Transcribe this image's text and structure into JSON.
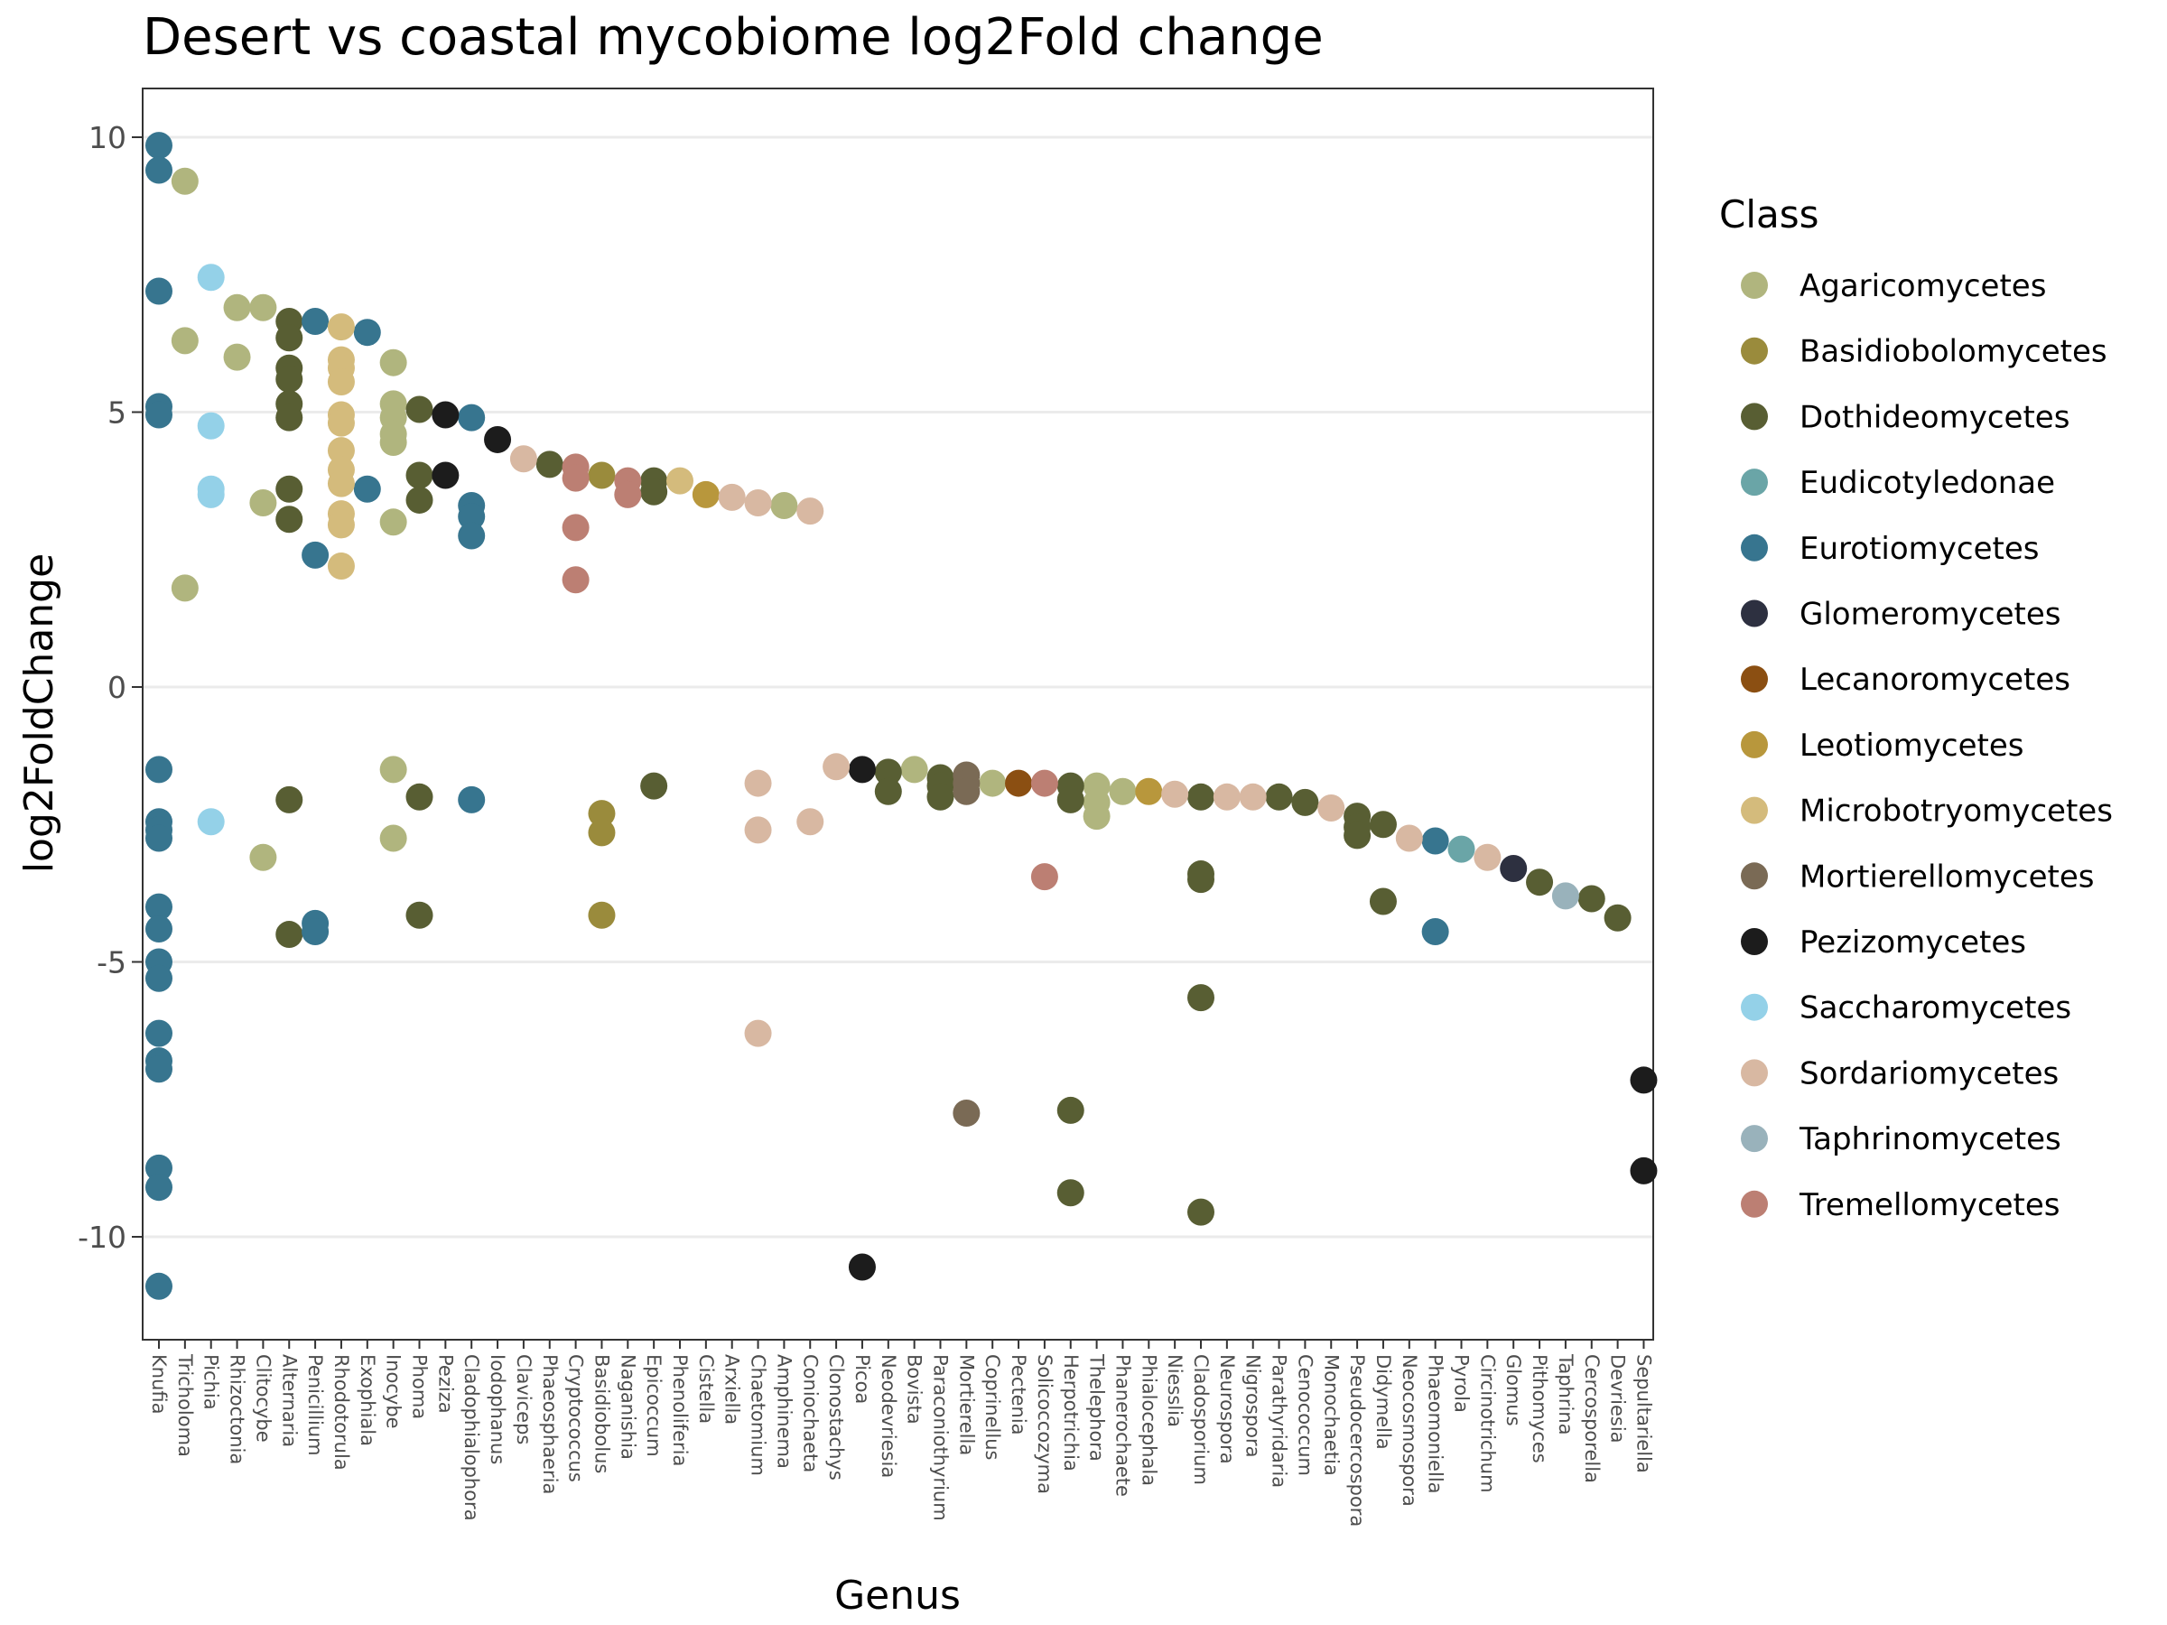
{
  "chart_data": {
    "type": "scatter",
    "title": "Desert vs coastal mycobiome log2Fold change",
    "xlabel": "Genus",
    "ylabel": "log2FoldChange",
    "ylim": [
      -11.8,
      10.8
    ],
    "yticks": [
      10,
      5,
      0,
      -5,
      -10
    ],
    "ytick_labels": [
      "10",
      "5",
      "0",
      "-5",
      "-10"
    ],
    "grid": "horizontal major lines",
    "legend": {
      "title": "Class",
      "position": "right"
    },
    "categories": [
      "Knufia",
      "Tricholoma",
      "Pichia",
      "Rhizoctonia",
      "Clitocybe",
      "Alternaria",
      "Penicillium",
      "Rhodotorula",
      "Exophiala",
      "Inocybe",
      "Phoma",
      "Peziza",
      "Cladophialophora",
      "Iodophanus",
      "Claviceps",
      "Phaeosphaeria",
      "Cryptococcus",
      "Basidiobolus",
      "Naganishia",
      "Epicoccum",
      "Phenoliferia",
      "Cistella",
      "Arxiella",
      "Chaetomium",
      "Amphinema",
      "Coniochaeta",
      "Clonostachys",
      "Picoa",
      "Neodevriesia",
      "Bovista",
      "Paraconiothyrium",
      "Mortierella",
      "Coprinellus",
      "Pectenia",
      "Solicoccozyma",
      "Herpotrichia",
      "Thelephora",
      "Phanerochaete",
      "Phialocephala",
      "Niesslia",
      "Cladosporium",
      "Neurospora",
      "Nigrospora",
      "Parathyridaria",
      "Cenococcum",
      "Monochaetia",
      "Pseudocercospora",
      "Didymella",
      "Neocosmospora",
      "Phaeomoniella",
      "Pyrola",
      "Circinotrichum",
      "Glomus",
      "Pithomyces",
      "Taphrina",
      "Cercosporella",
      "Devriesia",
      "Sepultariella"
    ],
    "series": [
      {
        "name": "Agaricomycetes",
        "color": "#b0b57e",
        "points": [
          [
            "Tricholoma",
            9.2
          ],
          [
            "Tricholoma",
            6.3
          ],
          [
            "Tricholoma",
            1.8
          ],
          [
            "Rhizoctonia",
            6.9
          ],
          [
            "Rhizoctonia",
            6.0
          ],
          [
            "Clitocybe",
            6.9
          ],
          [
            "Clitocybe",
            3.35
          ],
          [
            "Clitocybe",
            -3.1
          ],
          [
            "Inocybe",
            5.9
          ],
          [
            "Inocybe",
            5.15
          ],
          [
            "Inocybe",
            4.9
          ],
          [
            "Inocybe",
            4.6
          ],
          [
            "Inocybe",
            4.45
          ],
          [
            "Inocybe",
            3.0
          ],
          [
            "Inocybe",
            -1.5
          ],
          [
            "Inocybe",
            -2.75
          ],
          [
            "Amphinema",
            3.3
          ],
          [
            "Bovista",
            -1.5
          ],
          [
            "Coprinellus",
            -1.75
          ],
          [
            "Thelephora",
            -1.8
          ],
          [
            "Thelephora",
            -2.1
          ],
          [
            "Thelephora",
            -2.35
          ],
          [
            "Phanerochaete",
            -1.9
          ]
        ]
      },
      {
        "name": "Basidiobolomycetes",
        "color": "#9a8b3c",
        "points": [
          [
            "Basidiobolus",
            3.85
          ],
          [
            "Basidiobolus",
            -2.3
          ],
          [
            "Basidiobolus",
            -2.65
          ],
          [
            "Basidiobolus",
            -4.15
          ]
        ]
      },
      {
        "name": "Dothideomycetes",
        "color": "#585e33",
        "points": [
          [
            "Alternaria",
            6.65
          ],
          [
            "Alternaria",
            6.35
          ],
          [
            "Alternaria",
            5.8
          ],
          [
            "Alternaria",
            5.6
          ],
          [
            "Alternaria",
            5.15
          ],
          [
            "Alternaria",
            4.9
          ],
          [
            "Alternaria",
            3.6
          ],
          [
            "Alternaria",
            3.05
          ],
          [
            "Alternaria",
            -2.05
          ],
          [
            "Alternaria",
            -4.5
          ],
          [
            "Phoma",
            5.05
          ],
          [
            "Phoma",
            3.85
          ],
          [
            "Phoma",
            3.4
          ],
          [
            "Phoma",
            -2.0
          ],
          [
            "Phoma",
            -4.15
          ],
          [
            "Phaeosphaeria",
            4.05
          ],
          [
            "Epicoccum",
            3.75
          ],
          [
            "Epicoccum",
            3.55
          ],
          [
            "Epicoccum",
            -1.8
          ],
          [
            "Neodevriesia",
            -1.55
          ],
          [
            "Neodevriesia",
            -1.9
          ],
          [
            "Paraconiothyrium",
            -1.65
          ],
          [
            "Paraconiothyrium",
            -1.8
          ],
          [
            "Paraconiothyrium",
            -2.0
          ],
          [
            "Herpotrichia",
            -1.8
          ],
          [
            "Herpotrichia",
            -2.05
          ],
          [
            "Herpotrichia",
            -7.7
          ],
          [
            "Herpotrichia",
            -9.2
          ],
          [
            "Cladosporium",
            -2.0
          ],
          [
            "Cladosporium",
            -3.4
          ],
          [
            "Cladosporium",
            -3.5
          ],
          [
            "Cladosporium",
            -5.65
          ],
          [
            "Cladosporium",
            -9.55
          ],
          [
            "Parathyridaria",
            -2.0
          ],
          [
            "Cenococcum",
            -2.1
          ],
          [
            "Pseudocercospora",
            -2.35
          ],
          [
            "Pseudocercospora",
            -2.55
          ],
          [
            "Pseudocercospora",
            -2.7
          ],
          [
            "Didymella",
            -2.5
          ],
          [
            "Didymella",
            -3.9
          ],
          [
            "Pithomyces",
            -3.55
          ],
          [
            "Cercosporella",
            -3.85
          ],
          [
            "Devriesia",
            -4.2
          ]
        ]
      },
      {
        "name": "Eudicotyledonae",
        "color": "#6aa5a7",
        "points": [
          [
            "Pyrola",
            -2.95
          ]
        ]
      },
      {
        "name": "Eurotiomycetes",
        "color": "#37758f",
        "points": [
          [
            "Knufia",
            9.85
          ],
          [
            "Knufia",
            9.4
          ],
          [
            "Knufia",
            7.2
          ],
          [
            "Knufia",
            5.1
          ],
          [
            "Knufia",
            4.95
          ],
          [
            "Knufia",
            -1.5
          ],
          [
            "Knufia",
            -2.45
          ],
          [
            "Knufia",
            -2.6
          ],
          [
            "Knufia",
            -2.75
          ],
          [
            "Knufia",
            -4.0
          ],
          [
            "Knufia",
            -4.4
          ],
          [
            "Knufia",
            -5.0
          ],
          [
            "Knufia",
            -5.3
          ],
          [
            "Knufia",
            -6.3
          ],
          [
            "Knufia",
            -6.8
          ],
          [
            "Knufia",
            -6.95
          ],
          [
            "Knufia",
            -8.75
          ],
          [
            "Knufia",
            -9.1
          ],
          [
            "Knufia",
            -10.9
          ],
          [
            "Penicillium",
            6.65
          ],
          [
            "Penicillium",
            2.4
          ],
          [
            "Penicillium",
            -4.3
          ],
          [
            "Penicillium",
            -4.45
          ],
          [
            "Exophiala",
            6.45
          ],
          [
            "Exophiala",
            3.6
          ],
          [
            "Cladophialophora",
            4.9
          ],
          [
            "Cladophialophora",
            3.3
          ],
          [
            "Cladophialophora",
            3.1
          ],
          [
            "Cladophialophora",
            2.75
          ],
          [
            "Cladophialophora",
            -2.05
          ],
          [
            "Phaeomoniella",
            -2.8
          ],
          [
            "Phaeomoniella",
            -4.45
          ]
        ]
      },
      {
        "name": "Glomeromycetes",
        "color": "#2d3040",
        "points": [
          [
            "Glomus",
            -3.3
          ]
        ]
      },
      {
        "name": "Lecanoromycetes",
        "color": "#8b4f12",
        "points": [
          [
            "Pectenia",
            -1.75
          ]
        ]
      },
      {
        "name": "Leotiomycetes",
        "color": "#b8973c",
        "points": [
          [
            "Cistella",
            3.5
          ],
          [
            "Phialocephala",
            -1.9
          ]
        ]
      },
      {
        "name": "Microbotryomycetes",
        "color": "#d4bb7c",
        "points": [
          [
            "Rhodotorula",
            6.55
          ],
          [
            "Rhodotorula",
            5.95
          ],
          [
            "Rhodotorula",
            5.8
          ],
          [
            "Rhodotorula",
            5.55
          ],
          [
            "Rhodotorula",
            4.95
          ],
          [
            "Rhodotorula",
            4.8
          ],
          [
            "Rhodotorula",
            4.3
          ],
          [
            "Rhodotorula",
            3.95
          ],
          [
            "Rhodotorula",
            3.7
          ],
          [
            "Rhodotorula",
            3.15
          ],
          [
            "Rhodotorula",
            2.95
          ],
          [
            "Rhodotorula",
            2.2
          ],
          [
            "Phenoliferia",
            3.75
          ]
        ]
      },
      {
        "name": "Mortierellomycetes",
        "color": "#7a6a55",
        "points": [
          [
            "Mortierella",
            -1.6
          ],
          [
            "Mortierella",
            -1.75
          ],
          [
            "Mortierella",
            -1.9
          ],
          [
            "Mortierella",
            -7.75
          ]
        ]
      },
      {
        "name": "Pezizomycetes",
        "color": "#1c1c1c",
        "points": [
          [
            "Peziza",
            4.95
          ],
          [
            "Peziza",
            3.85
          ],
          [
            "Iodophanus",
            4.5
          ],
          [
            "Picoa",
            -1.5
          ],
          [
            "Picoa",
            -10.55
          ],
          [
            "Sepultariella",
            -7.15
          ],
          [
            "Sepultariella",
            -8.8
          ]
        ]
      },
      {
        "name": "Saccharomycetes",
        "color": "#94d1e8",
        "points": [
          [
            "Pichia",
            7.45
          ],
          [
            "Pichia",
            4.75
          ],
          [
            "Pichia",
            3.6
          ],
          [
            "Pichia",
            3.5
          ],
          [
            "Pichia",
            -2.45
          ]
        ]
      },
      {
        "name": "Sordariomycetes",
        "color": "#d8b8a2",
        "points": [
          [
            "Claviceps",
            4.15
          ],
          [
            "Arxiella",
            3.45
          ],
          [
            "Chaetomium",
            3.35
          ],
          [
            "Chaetomium",
            -1.75
          ],
          [
            "Chaetomium",
            -2.6
          ],
          [
            "Chaetomium",
            -6.3
          ],
          [
            "Coniochaeta",
            3.2
          ],
          [
            "Coniochaeta",
            -2.45
          ],
          [
            "Clonostachys",
            -1.45
          ],
          [
            "Niesslia",
            -1.95
          ],
          [
            "Neurospora",
            -2.0
          ],
          [
            "Nigrospora",
            -2.0
          ],
          [
            "Monochaetia",
            -2.2
          ],
          [
            "Neocosmospora",
            -2.75
          ],
          [
            "Circinotrichum",
            -3.1
          ]
        ]
      },
      {
        "name": "Taphrinomycetes",
        "color": "#99b2bb",
        "points": [
          [
            "Taphrina",
            -3.8
          ]
        ]
      },
      {
        "name": "Tremellomycetes",
        "color": "#bc7f73",
        "points": [
          [
            "Cryptococcus",
            4.0
          ],
          [
            "Cryptococcus",
            3.8
          ],
          [
            "Cryptococcus",
            2.9
          ],
          [
            "Cryptococcus",
            1.95
          ],
          [
            "Naganishia",
            3.75
          ],
          [
            "Naganishia",
            3.5
          ],
          [
            "Solicoccozyma",
            -1.75
          ],
          [
            "Solicoccozyma",
            -3.45
          ]
        ]
      }
    ]
  }
}
